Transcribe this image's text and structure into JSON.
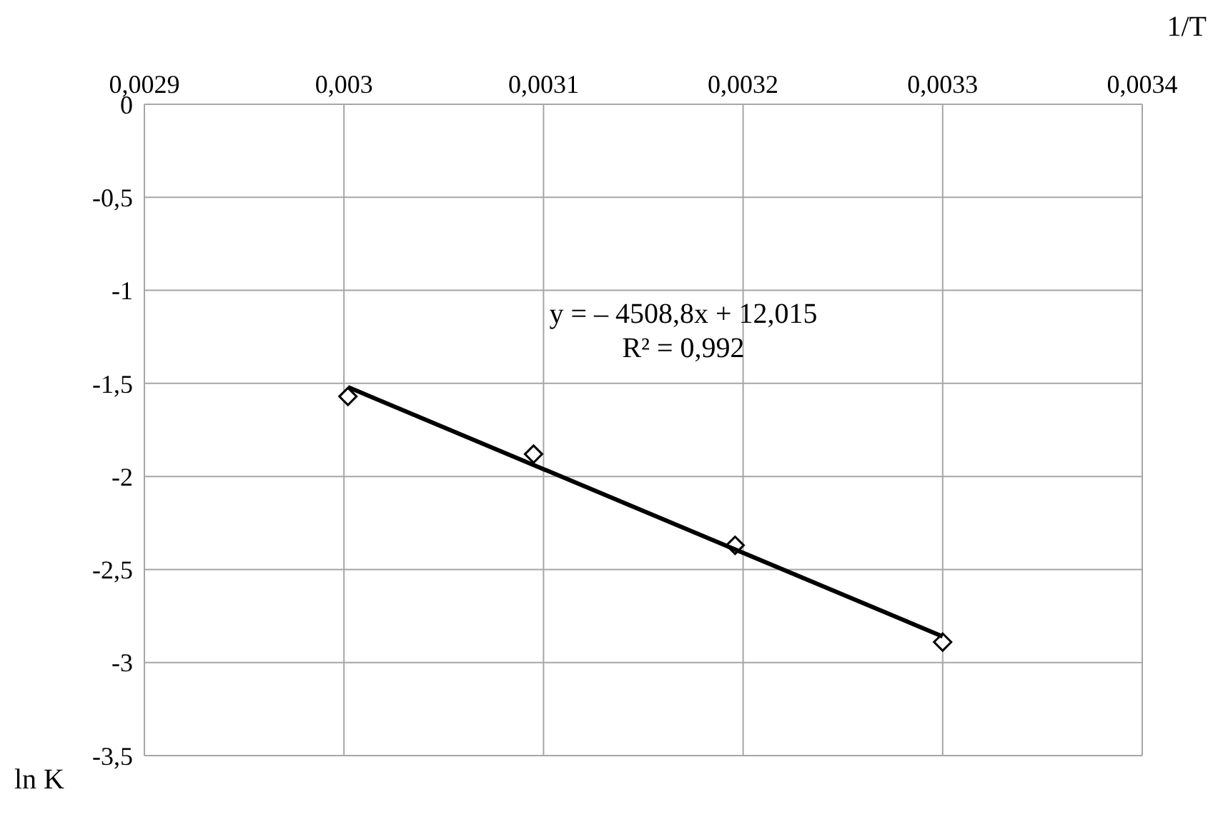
{
  "chart_data": {
    "type": "scatter",
    "xlabel": "1/T",
    "ylabel": "ln K",
    "x": [
      0.003002,
      0.003095,
      0.003196,
      0.0033
    ],
    "series": [
      {
        "color": "#000000",
        "marker": "diamond",
        "values": [
          -1.57,
          -1.88,
          -2.37,
          -2.89
        ]
      },
      {
        "type": "line",
        "color": "#000000",
        "marker": "none",
        "line_style": "solid",
        "x": [
          0.003002,
          0.0033
        ],
        "values": [
          -1.52,
          -2.86
        ]
      }
    ],
    "xlim": [
      0.0029,
      0.0034
    ],
    "xticks": [
      {
        "value": 0.0029,
        "label": "0,0029"
      },
      {
        "value": 0.003,
        "label": "0,003"
      },
      {
        "value": 0.0031,
        "label": "0,0031"
      },
      {
        "value": 0.0032,
        "label": "0,0032"
      },
      {
        "value": 0.0033,
        "label": "0,0033"
      },
      {
        "value": 0.0034,
        "label": "0,0034"
      }
    ],
    "ylim": [
      -3.5,
      0
    ],
    "yticks": [
      {
        "value": 0,
        "label": "0"
      },
      {
        "value": -0.5,
        "label": "-0,5"
      },
      {
        "value": -1,
        "label": "-1"
      },
      {
        "value": -1.5,
        "label": "-1,5"
      },
      {
        "value": -2,
        "label": "-2"
      },
      {
        "value": -2.5,
        "label": "-2,5"
      },
      {
        "value": -3,
        "label": "-3"
      },
      {
        "value": -3.5,
        "label": "-3,5"
      }
    ],
    "grid": true,
    "annotations": [
      "y = – 4508,8x  + 12,015",
      "R² = 0,992"
    ]
  }
}
